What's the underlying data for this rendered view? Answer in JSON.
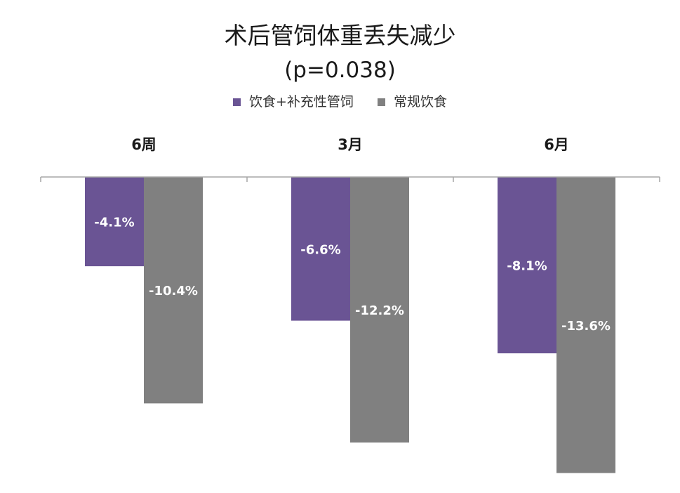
{
  "chart_data": {
    "type": "bar",
    "title": "术后管饲体重丢失减少",
    "subtitle": "(p=0.038)",
    "categories": [
      "6周",
      "3月",
      "6月"
    ],
    "series": [
      {
        "name": "饮食+补充性管饲",
        "color": "#6a5494",
        "values": [
          -4.1,
          -6.6,
          -8.1
        ],
        "labels": [
          "-4.1%",
          "-6.6%",
          "-8.1%"
        ]
      },
      {
        "name": "常规饮食",
        "color": "#808080",
        "values": [
          -10.4,
          -12.2,
          -13.6
        ],
        "labels": [
          "-10.4%",
          "-12.2%",
          "-13.6%"
        ]
      }
    ],
    "ylim": [
      -14,
      0
    ],
    "legend_position": "top",
    "category_labels_position": "top",
    "grid": false,
    "xlabel": "",
    "ylabel": ""
  }
}
